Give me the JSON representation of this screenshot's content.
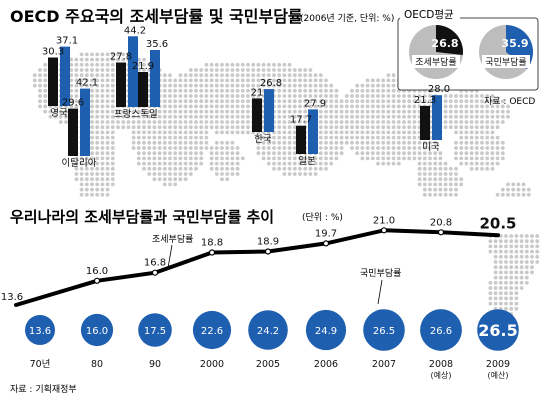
{
  "colors": {
    "blue": "#1f5fb0",
    "black": "#111111",
    "map": "#c9c9c9",
    "legend_gray": "#bdbdbd",
    "line": "#000000",
    "circle_dark": "#1f5fb0"
  },
  "top": {
    "title": "OECD 주요국의 조세부담률 및 국민부담률",
    "note": "(2006년 기준, 단위: %)",
    "source": "자료 : OECD"
  },
  "legend": {
    "title": "OECD평균",
    "items": [
      {
        "label": "조세부담률",
        "value": "26.8",
        "color": "#111111"
      },
      {
        "label": "국민부담률",
        "value": "35.9",
        "color": "#1f5fb0"
      }
    ]
  },
  "bottom": {
    "title": "우리나라의 조세부담률과 국민부담률 추이",
    "unit": "(단위 : %)",
    "line_label": "조세부담률",
    "circle_label": "국민부담률",
    "source": "자료 : 기획재정부"
  },
  "chart_data": [
    {
      "type": "bar",
      "title": "OECD 주요국의 조세부담률 및 국민부담률",
      "subtitle": "(2006년 기준, 단위: %)",
      "categories": [
        "영국",
        "프랑스",
        "독일",
        "이탈리아",
        "한국",
        "일본",
        "미국"
      ],
      "series": [
        {
          "name": "조세부담률",
          "color": "#111111",
          "values": [
            30.3,
            27.8,
            21.9,
            29.6,
            21.0,
            17.7,
            21.3
          ]
        },
        {
          "name": "국민부담률",
          "color": "#1f5fb0",
          "values": [
            37.1,
            44.2,
            35.6,
            42.1,
            26.8,
            27.9,
            28.0
          ]
        }
      ],
      "value_labels": {
        "조세부담률": [
          "30.3",
          "27.8",
          "21.9",
          "29.6",
          "21",
          "17.7",
          "21.3"
        ],
        "국민부담률": [
          "37.1",
          "44.2",
          "35.6",
          "42.1",
          "26.8",
          "27.9",
          "28.0"
        ]
      }
    },
    {
      "type": "pie",
      "title": "OECD평균",
      "series": [
        {
          "name": "조세부담률",
          "value": 26.8,
          "color": "#111111"
        },
        {
          "name": "국민부담률",
          "value": 35.9,
          "color": "#1f5fb0"
        }
      ]
    },
    {
      "type": "line",
      "title": "우리나라의 조세부담률과 국민부담률 추이",
      "subtitle": "(단위 : %)",
      "categories": [
        "70년",
        "80",
        "90",
        "2000",
        "2005",
        "2006",
        "2007",
        "2008",
        "2009"
      ],
      "category_notes": [
        "",
        "",
        "",
        "",
        "",
        "",
        "",
        "(예상)",
        "(예산)"
      ],
      "series": [
        {
          "name": "조세부담률",
          "values": [
            13.6,
            16.0,
            16.8,
            18.8,
            18.9,
            19.7,
            21.0,
            20.8,
            20.5
          ],
          "labels": [
            "13.6",
            "16.0",
            "16.8",
            "18.8",
            "18.9",
            "19.7",
            "21.0",
            "20.8",
            "20.5"
          ]
        },
        {
          "name": "국민부담률",
          "values": [
            13.6,
            16.0,
            17.5,
            22.6,
            24.2,
            24.9,
            26.5,
            26.6,
            26.5
          ],
          "labels": [
            "13.6",
            "16.0",
            "17.5",
            "22.6",
            "24.2",
            "24.9",
            "26.5",
            "26.6",
            "26.5"
          ]
        }
      ],
      "source": "자료 : 기획재정부"
    }
  ]
}
